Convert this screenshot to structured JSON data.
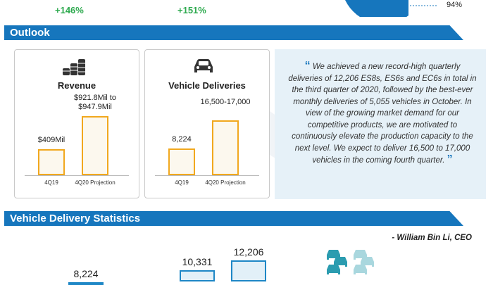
{
  "top": {
    "growth_left": "+146%",
    "growth_right": "+151%",
    "donut_label": "94%",
    "donut_color": "#1676bd"
  },
  "outlook": {
    "heading": "Outlook",
    "revenue_panel": {
      "title": "Revenue",
      "icon": "coins-stack-icon"
    },
    "deliveries_panel": {
      "title": "Vehicle Deliveries",
      "icon": "car-front-icon"
    },
    "quote": {
      "text": "We achieved a new record-high quarterly deliveries of 12,206 ES8s, ES6s and EC6s in total in the third quarter of 2020, followed by the best-ever monthly deliveries of 5,055 vehicles in October. In view of the growing market demand for our competitive products, we are motivated to continuously elevate the production capacity to the next level. We expect to deliver 16,500 to 17,000 vehicles in the coming fourth quarter.",
      "open_mark": "“",
      "close_mark": "”",
      "author": "- William Bin Li, CEO"
    }
  },
  "delivery_stats": {
    "heading": "Vehicle Delivery Statistics",
    "icon": "cars-group-icon"
  },
  "colors": {
    "banner": "#1676bd",
    "growth_green": "#2eaa4f",
    "outlook_bar_border": "#f1a81e",
    "delivery_bar_border": "#1e87c6",
    "quote_bg": "#e6f1f8"
  },
  "chart_data": [
    {
      "type": "bar",
      "title": "Revenue",
      "categories": [
        "4Q19",
        "4Q20 Projection"
      ],
      "values": [
        409,
        934.85
      ],
      "value_labels": [
        "$409Mil",
        "$921.8Mil to $947.9Mil"
      ],
      "ylim": [
        0,
        1000
      ]
    },
    {
      "type": "bar",
      "title": "Vehicle Deliveries",
      "categories": [
        "4Q19",
        "4Q20 Projection"
      ],
      "values": [
        8224,
        16750
      ],
      "value_labels": [
        "8,224",
        "16,500-17,000"
      ],
      "ylim": [
        0,
        18000
      ]
    },
    {
      "type": "bar",
      "title": "Vehicle Delivery Statistics",
      "categories": [
        "",
        "",
        ""
      ],
      "values": [
        8224,
        10331,
        12206
      ],
      "value_labels": [
        "8,224",
        "10,331",
        "12,206"
      ],
      "ylim": [
        0,
        12206
      ]
    }
  ]
}
